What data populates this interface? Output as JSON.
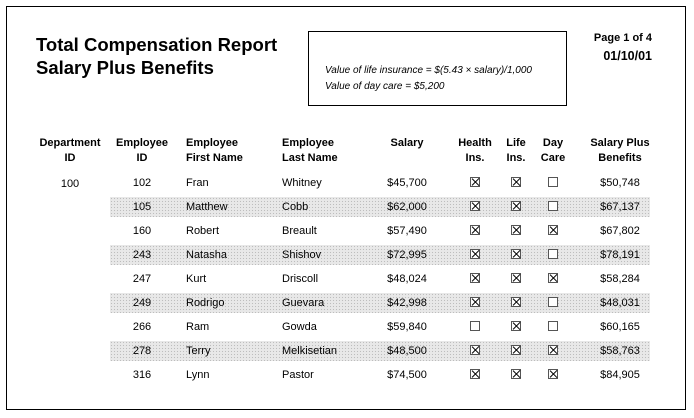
{
  "report": {
    "title_line1": "Total Compensation Report",
    "title_line2": "Salary Plus Benefits",
    "formula_line1": "Value of life insurance = $(5.43 × salary)/1,000",
    "formula_line2": "Value of day care = $5,200",
    "page": "Page 1 of 4",
    "date": "01/10/01"
  },
  "headers": {
    "department": "Department\nID",
    "employee_id": "Employee\nID",
    "first_name": "Employee\nFirst Name",
    "last_name": "Employee\nLast Name",
    "salary": "Salary",
    "health": "Health\nIns.",
    "life": "Life\nIns.",
    "day_care": "Day\nCare",
    "total": "Salary Plus\nBenefits"
  },
  "department_id": "100",
  "rows": [
    {
      "id": "102",
      "first": "Fran",
      "last": "Whitney",
      "salary": "$45,700",
      "health": true,
      "life": true,
      "daycare": false,
      "total": "$50,748"
    },
    {
      "id": "105",
      "first": "Matthew",
      "last": "Cobb",
      "salary": "$62,000",
      "health": true,
      "life": true,
      "daycare": false,
      "total": "$67,137"
    },
    {
      "id": "160",
      "first": "Robert",
      "last": "Breault",
      "salary": "$57,490",
      "health": true,
      "life": true,
      "daycare": true,
      "total": "$67,802"
    },
    {
      "id": "243",
      "first": "Natasha",
      "last": "Shishov",
      "salary": "$72,995",
      "health": true,
      "life": true,
      "daycare": false,
      "total": "$78,191"
    },
    {
      "id": "247",
      "first": "Kurt",
      "last": "Driscoll",
      "salary": "$48,024",
      "health": true,
      "life": true,
      "daycare": true,
      "total": "$58,284"
    },
    {
      "id": "249",
      "first": "Rodrigo",
      "last": "Guevara",
      "salary": "$42,998",
      "health": true,
      "life": true,
      "daycare": false,
      "total": "$48,031"
    },
    {
      "id": "266",
      "first": "Ram",
      "last": "Gowda",
      "salary": "$59,840",
      "health": false,
      "life": true,
      "daycare": false,
      "total": "$60,165"
    },
    {
      "id": "278",
      "first": "Terry",
      "last": "Melkisetian",
      "salary": "$48,500",
      "health": true,
      "life": true,
      "daycare": true,
      "total": "$58,763"
    },
    {
      "id": "316",
      "first": "Lynn",
      "last": "Pastor",
      "salary": "$74,500",
      "health": true,
      "life": true,
      "daycare": true,
      "total": "$84,905"
    }
  ]
}
